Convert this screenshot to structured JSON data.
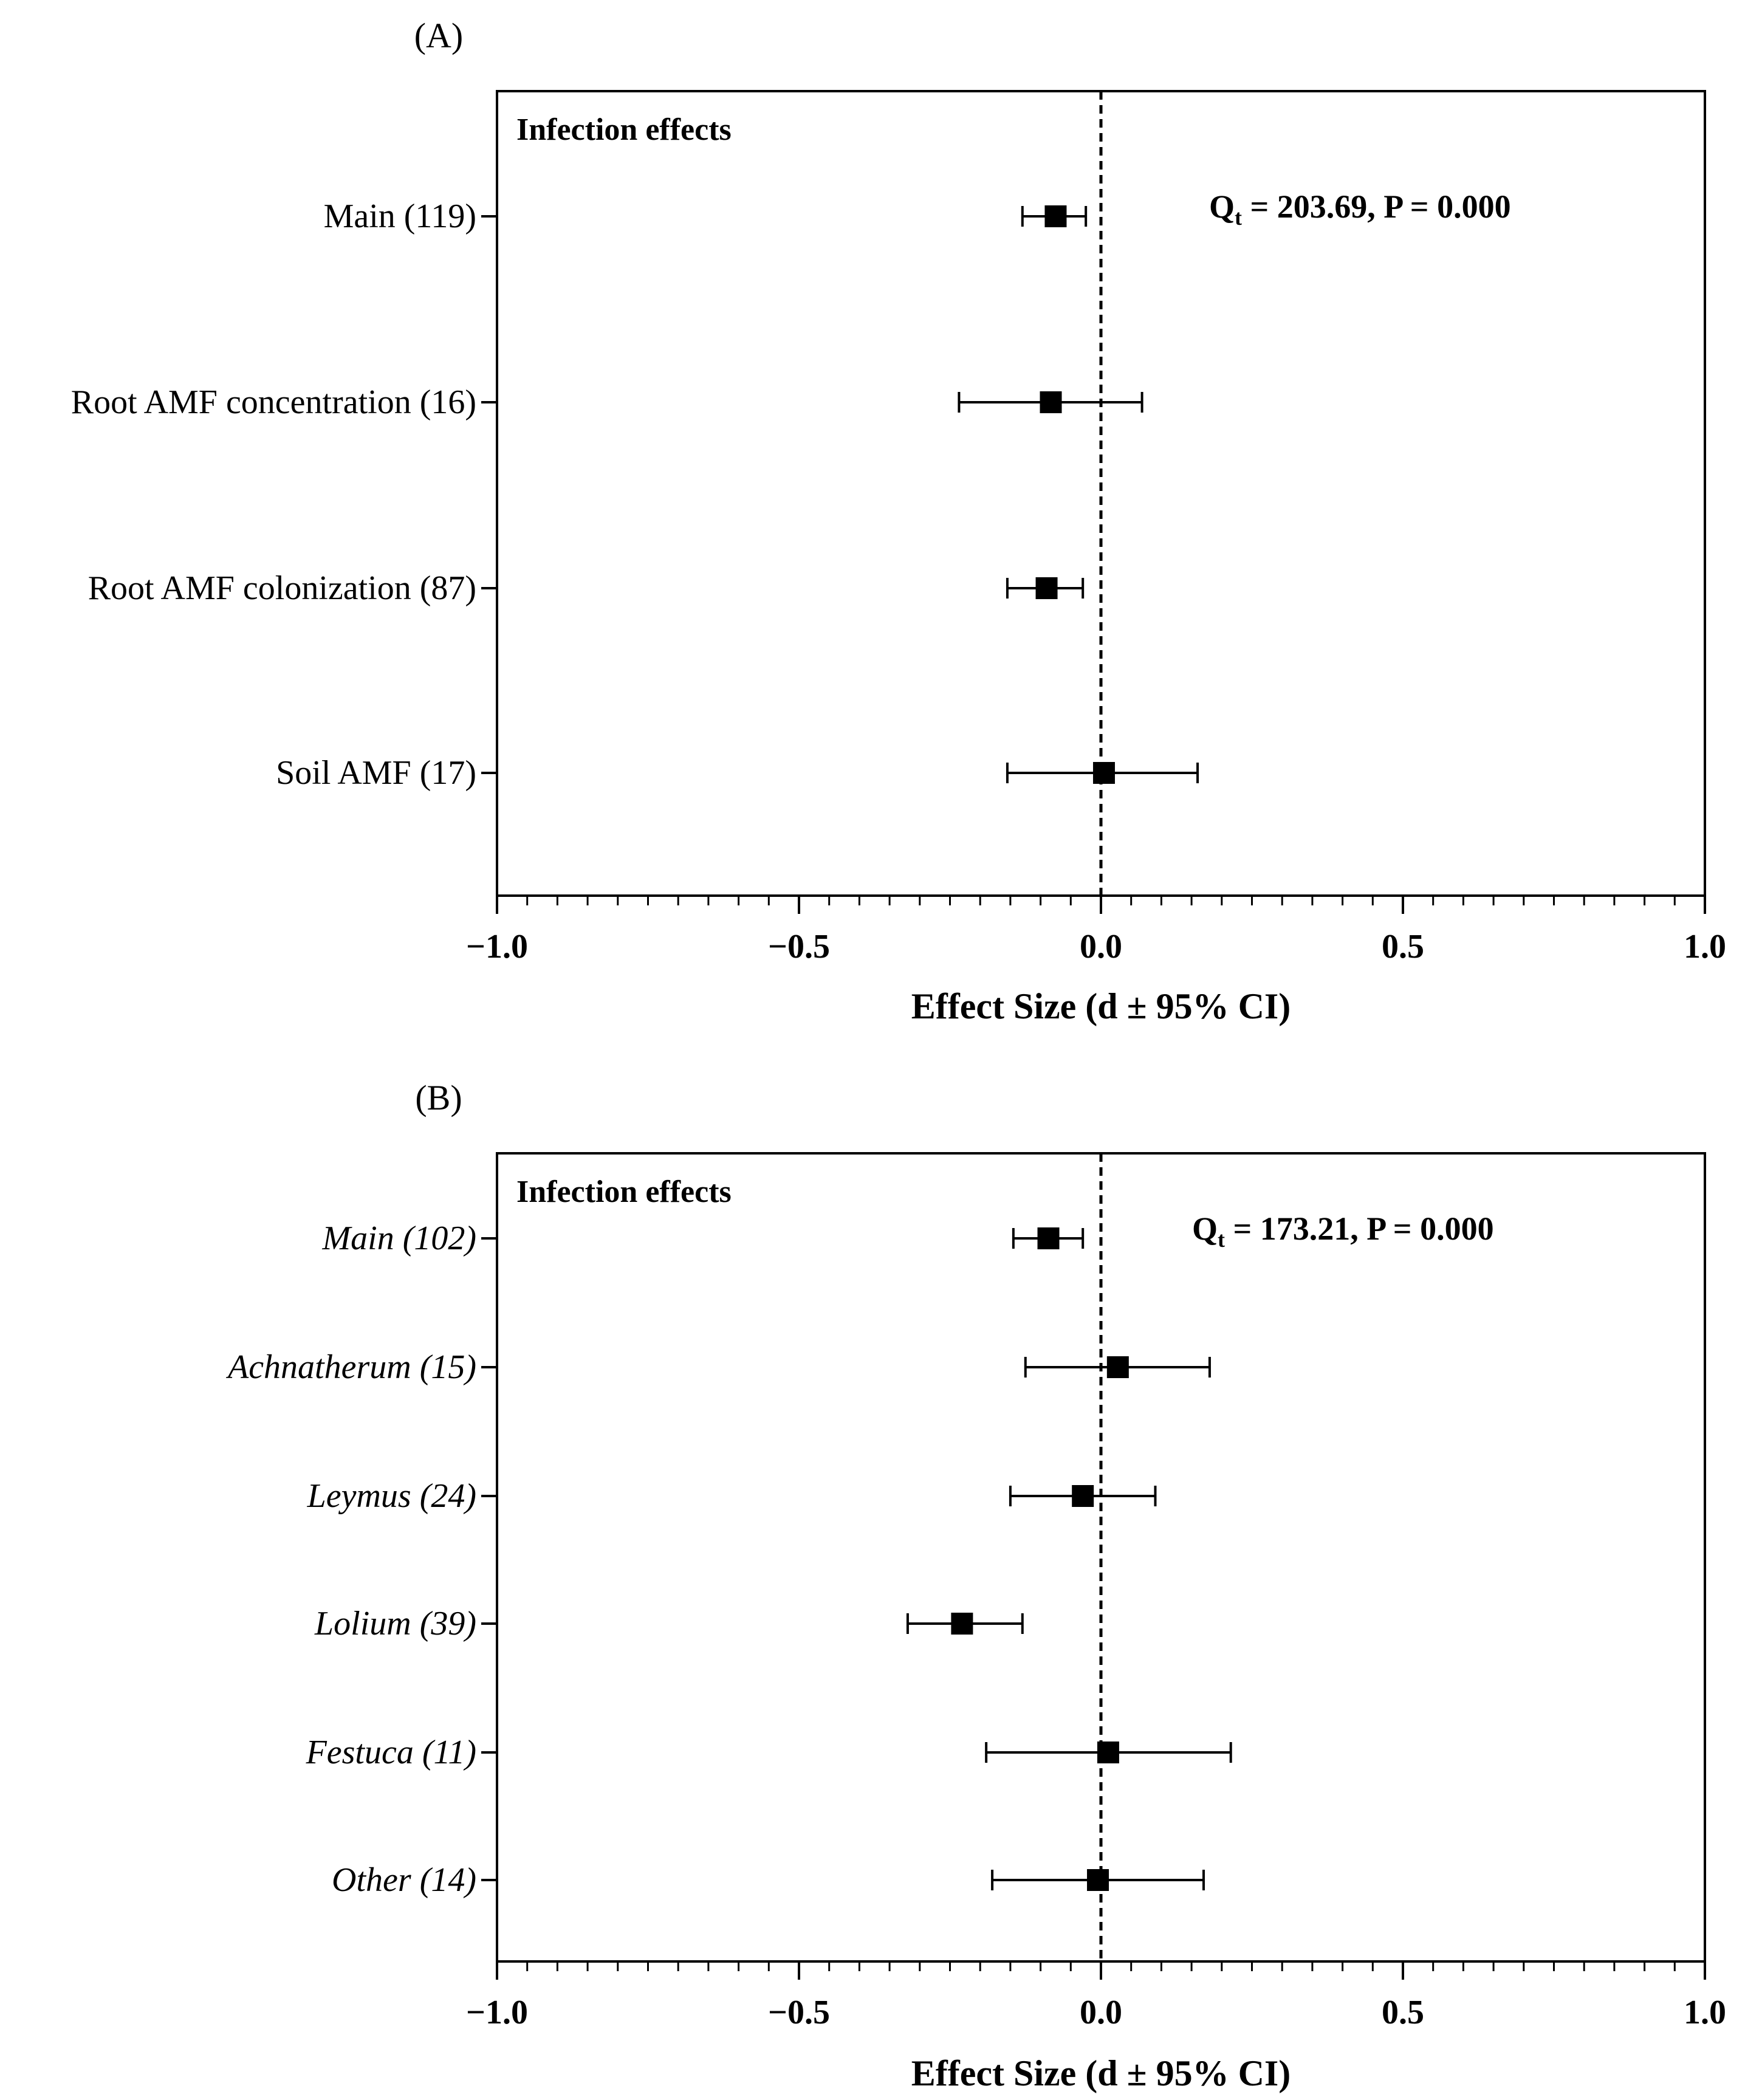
{
  "chart_data": [
    {
      "type": "scatter",
      "panel_label": "(A)",
      "title": "Infection effects",
      "stat": {
        "prefix": "Q",
        "sub": "t",
        "suffix": " = 203.69, P = 0.000"
      },
      "xlabel": "Effect Size (d ± 95% CI)",
      "xlim": [
        -1.0,
        1.0
      ],
      "x_ticks": [
        -1.0,
        -0.5,
        0.0,
        0.5,
        1.0
      ],
      "x_tick_labels": [
        "−1.0",
        "−0.5",
        "0.0",
        "0.5",
        "1.0"
      ],
      "minor_tick_step": 0.05,
      "reference_line": 0.0,
      "italic_labels": false,
      "categories": [
        "Main (119)",
        "Root AMF concentration (16)",
        "Root AMF colonization (87)",
        "Soil AMF (17)"
      ],
      "values": [
        -0.075,
        -0.083,
        -0.09,
        0.005
      ],
      "ci_low": [
        -0.13,
        -0.235,
        -0.155,
        -0.155
      ],
      "ci_high": [
        -0.025,
        0.068,
        -0.03,
        0.16
      ]
    },
    {
      "type": "scatter",
      "panel_label": "(B)",
      "title": "Infection effects",
      "stat": {
        "prefix": "Q",
        "sub": "t",
        "suffix": " = 173.21, P = 0.000"
      },
      "xlabel": "Effect Size (d ± 95% CI)",
      "xlim": [
        -1.0,
        1.0
      ],
      "x_ticks": [
        -1.0,
        -0.5,
        0.0,
        0.5,
        1.0
      ],
      "x_tick_labels": [
        "−1.0",
        "−0.5",
        "0.0",
        "0.5",
        "1.0"
      ],
      "minor_tick_step": 0.05,
      "reference_line": 0.0,
      "italic_labels": true,
      "categories": [
        "Main (102)",
        "Achnatherum (15)",
        "Leymus (24)",
        "Lolium (39)",
        "Festuca (11)",
        "Other (14)"
      ],
      "values": [
        -0.087,
        0.028,
        -0.03,
        -0.23,
        0.012,
        -0.005
      ],
      "ci_low": [
        -0.145,
        -0.125,
        -0.15,
        -0.32,
        -0.19,
        -0.18
      ],
      "ci_high": [
        -0.03,
        0.18,
        0.09,
        -0.13,
        0.215,
        0.17
      ]
    }
  ]
}
